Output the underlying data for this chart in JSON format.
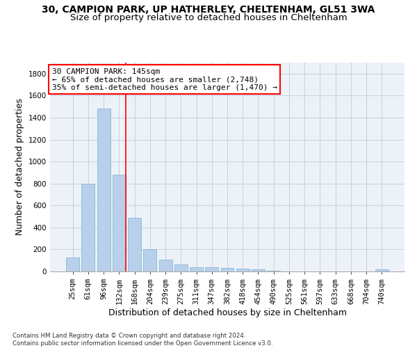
{
  "title_line1": "30, CAMPION PARK, UP HATHERLEY, CHELTENHAM, GL51 3WA",
  "title_line2": "Size of property relative to detached houses in Cheltenham",
  "xlabel": "Distribution of detached houses by size in Cheltenham",
  "ylabel": "Number of detached properties",
  "bar_color": "#b8d0ea",
  "bar_edge_color": "#7aafd4",
  "categories": [
    "25sqm",
    "61sqm",
    "96sqm",
    "132sqm",
    "168sqm",
    "204sqm",
    "239sqm",
    "275sqm",
    "311sqm",
    "347sqm",
    "382sqm",
    "418sqm",
    "454sqm",
    "490sqm",
    "525sqm",
    "561sqm",
    "597sqm",
    "633sqm",
    "668sqm",
    "704sqm",
    "740sqm"
  ],
  "values": [
    125,
    800,
    1480,
    880,
    490,
    205,
    105,
    65,
    40,
    35,
    30,
    25,
    20,
    5,
    0,
    0,
    0,
    0,
    0,
    0,
    20
  ],
  "ylim": [
    0,
    1900
  ],
  "yticks": [
    0,
    200,
    400,
    600,
    800,
    1000,
    1200,
    1400,
    1600,
    1800
  ],
  "property_label": "30 CAMPION PARK: 145sqm",
  "pct_smaller": "65% of detached houses are smaller (2,748)",
  "pct_larger": "35% of semi-detached houses are larger (1,470)",
  "vline_position": 3.43,
  "footnote": "Contains HM Land Registry data © Crown copyright and database right 2024.\nContains public sector information licensed under the Open Government Licence v3.0.",
  "background_color": "#edf2f9",
  "grid_color": "#c8d0e0",
  "title_fontsize": 10,
  "subtitle_fontsize": 9.5,
  "tick_fontsize": 7.5,
  "label_fontsize": 9,
  "annot_fontsize": 8
}
